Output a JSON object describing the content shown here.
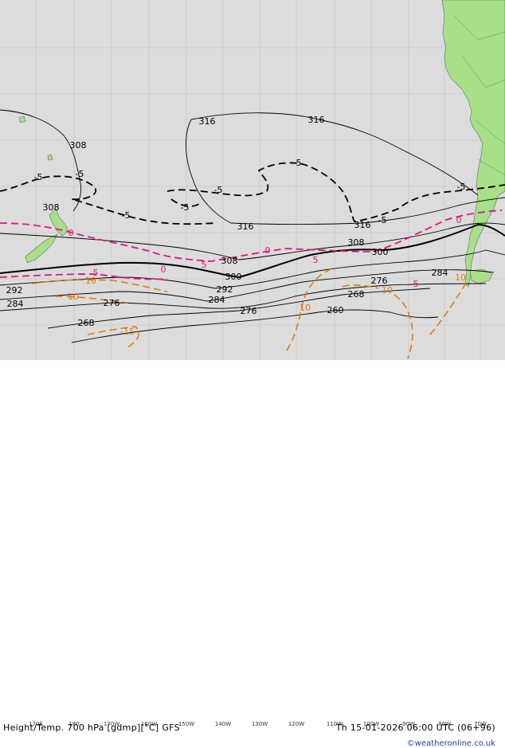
{
  "map": {
    "title": "Height/Temp. 700 hPa [gdmp][°C] GFS",
    "valid_time": "Th 15-01-2026 06:00 UTC (06+96)",
    "credit": "©weatheronline.co.uk",
    "longitude_labels": [
      "170E",
      "180",
      "170W",
      "160W",
      "150W",
      "140W",
      "130W",
      "120W",
      "110W",
      "100W",
      "90W",
      "80W",
      "70W"
    ],
    "colors": {
      "ocean": "#dcdcdc",
      "land": "#a8e08a",
      "height_contour": "#000000",
      "temp_zero": "#e0157d",
      "temp_positive": "#e07a10",
      "temp_negative": "#000000"
    },
    "height_contour_labels": [
      "316",
      "316",
      "308",
      "308",
      "316",
      "316",
      "308",
      "308",
      "300",
      "300",
      "292",
      "292",
      "284",
      "284",
      "284",
      "276",
      "276",
      "276",
      "268",
      "268",
      "260"
    ],
    "temperature_contour_labels": [
      "-5",
      "-5",
      "-5",
      "-5",
      "-5",
      "-5",
      "-5",
      "-5",
      "0",
      "0",
      "0",
      "0",
      "5",
      "5",
      "5",
      "5",
      "10",
      "10",
      "10",
      "10",
      "10",
      "-15"
    ]
  }
}
